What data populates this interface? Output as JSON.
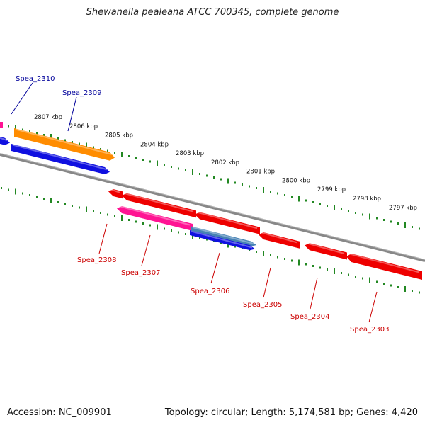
{
  "title": "Shewanella pealeana ATCC 700345, complete genome",
  "footer": {
    "accession": "Accession: NC_009901",
    "summary": "Topology: circular; Length: 5,174,581 bp; Genes: 4,420"
  },
  "colors": {
    "backbone": "#888888",
    "ticks": "#228822",
    "forward_label": "#00009b",
    "reverse_label": "#cc0000"
  },
  "scale": {
    "labels": [
      "2807 kbp",
      "2806 kbp",
      "2805 kbp",
      "2804 kbp",
      "2803 kbp",
      "2802 kbp",
      "2801 kbp",
      "2800 kbp",
      "2799 kbp",
      "2798 kbp",
      "2797 kbp"
    ]
  },
  "forward_strand": {
    "genes": [
      {
        "id": "Spea_2310",
        "color": "#1010e0",
        "label_color": "#00009b"
      },
      {
        "id": "Spea_2309",
        "color": "#ff8c00",
        "label_color": "#00009b"
      }
    ]
  },
  "reverse_strand": {
    "genes": [
      {
        "id": "Spea_2308",
        "color": "#ee0000",
        "label_color": "#cc0000"
      },
      {
        "id": "Spea_2307",
        "color": "#ff1493",
        "label_color": "#cc0000"
      },
      {
        "id": "Spea_2306",
        "color": "#1010e0",
        "label_color": "#cc0000"
      },
      {
        "id": "Spea_2305",
        "color": "#ee0000",
        "label_color": "#cc0000"
      },
      {
        "id": "Spea_2304",
        "color": "#ee0000",
        "label_color": "#cc0000"
      },
      {
        "id": "Spea_2303",
        "color": "#ee0000",
        "label_color": "#cc0000"
      }
    ],
    "extra_segments": [
      {
        "id": "unlabeled-red-gene",
        "color": "#ee0000"
      },
      {
        "id": "unlabeled-steel-gene",
        "color": "#4682b4"
      }
    ]
  }
}
